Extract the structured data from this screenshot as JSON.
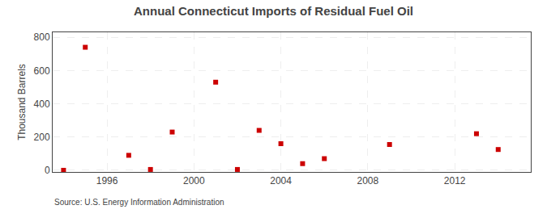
{
  "chart_data": {
    "type": "scatter",
    "title": "Annual Connecticut Imports of Residual Fuel Oil",
    "y_label": "Thousand Barrels",
    "annotations": [
      "Source: U.S. Energy Information Administration"
    ],
    "x": [
      1994,
      1995,
      1997,
      1998,
      1999,
      2001,
      2002,
      2003,
      2004,
      2005,
      2006,
      2009,
      2013,
      2014
    ],
    "values": [
      0,
      740,
      90,
      5,
      230,
      530,
      5,
      240,
      160,
      40,
      70,
      155,
      220,
      125
    ],
    "color": "#cc0000",
    "marker": "square",
    "xlim": [
      1993.5,
      2015.5
    ],
    "ylim": [
      -10,
      830
    ],
    "xticks": [
      1996,
      2000,
      2004,
      2008,
      2012
    ],
    "yticks": [
      0,
      200,
      400,
      600,
      800
    ],
    "grid": true
  }
}
